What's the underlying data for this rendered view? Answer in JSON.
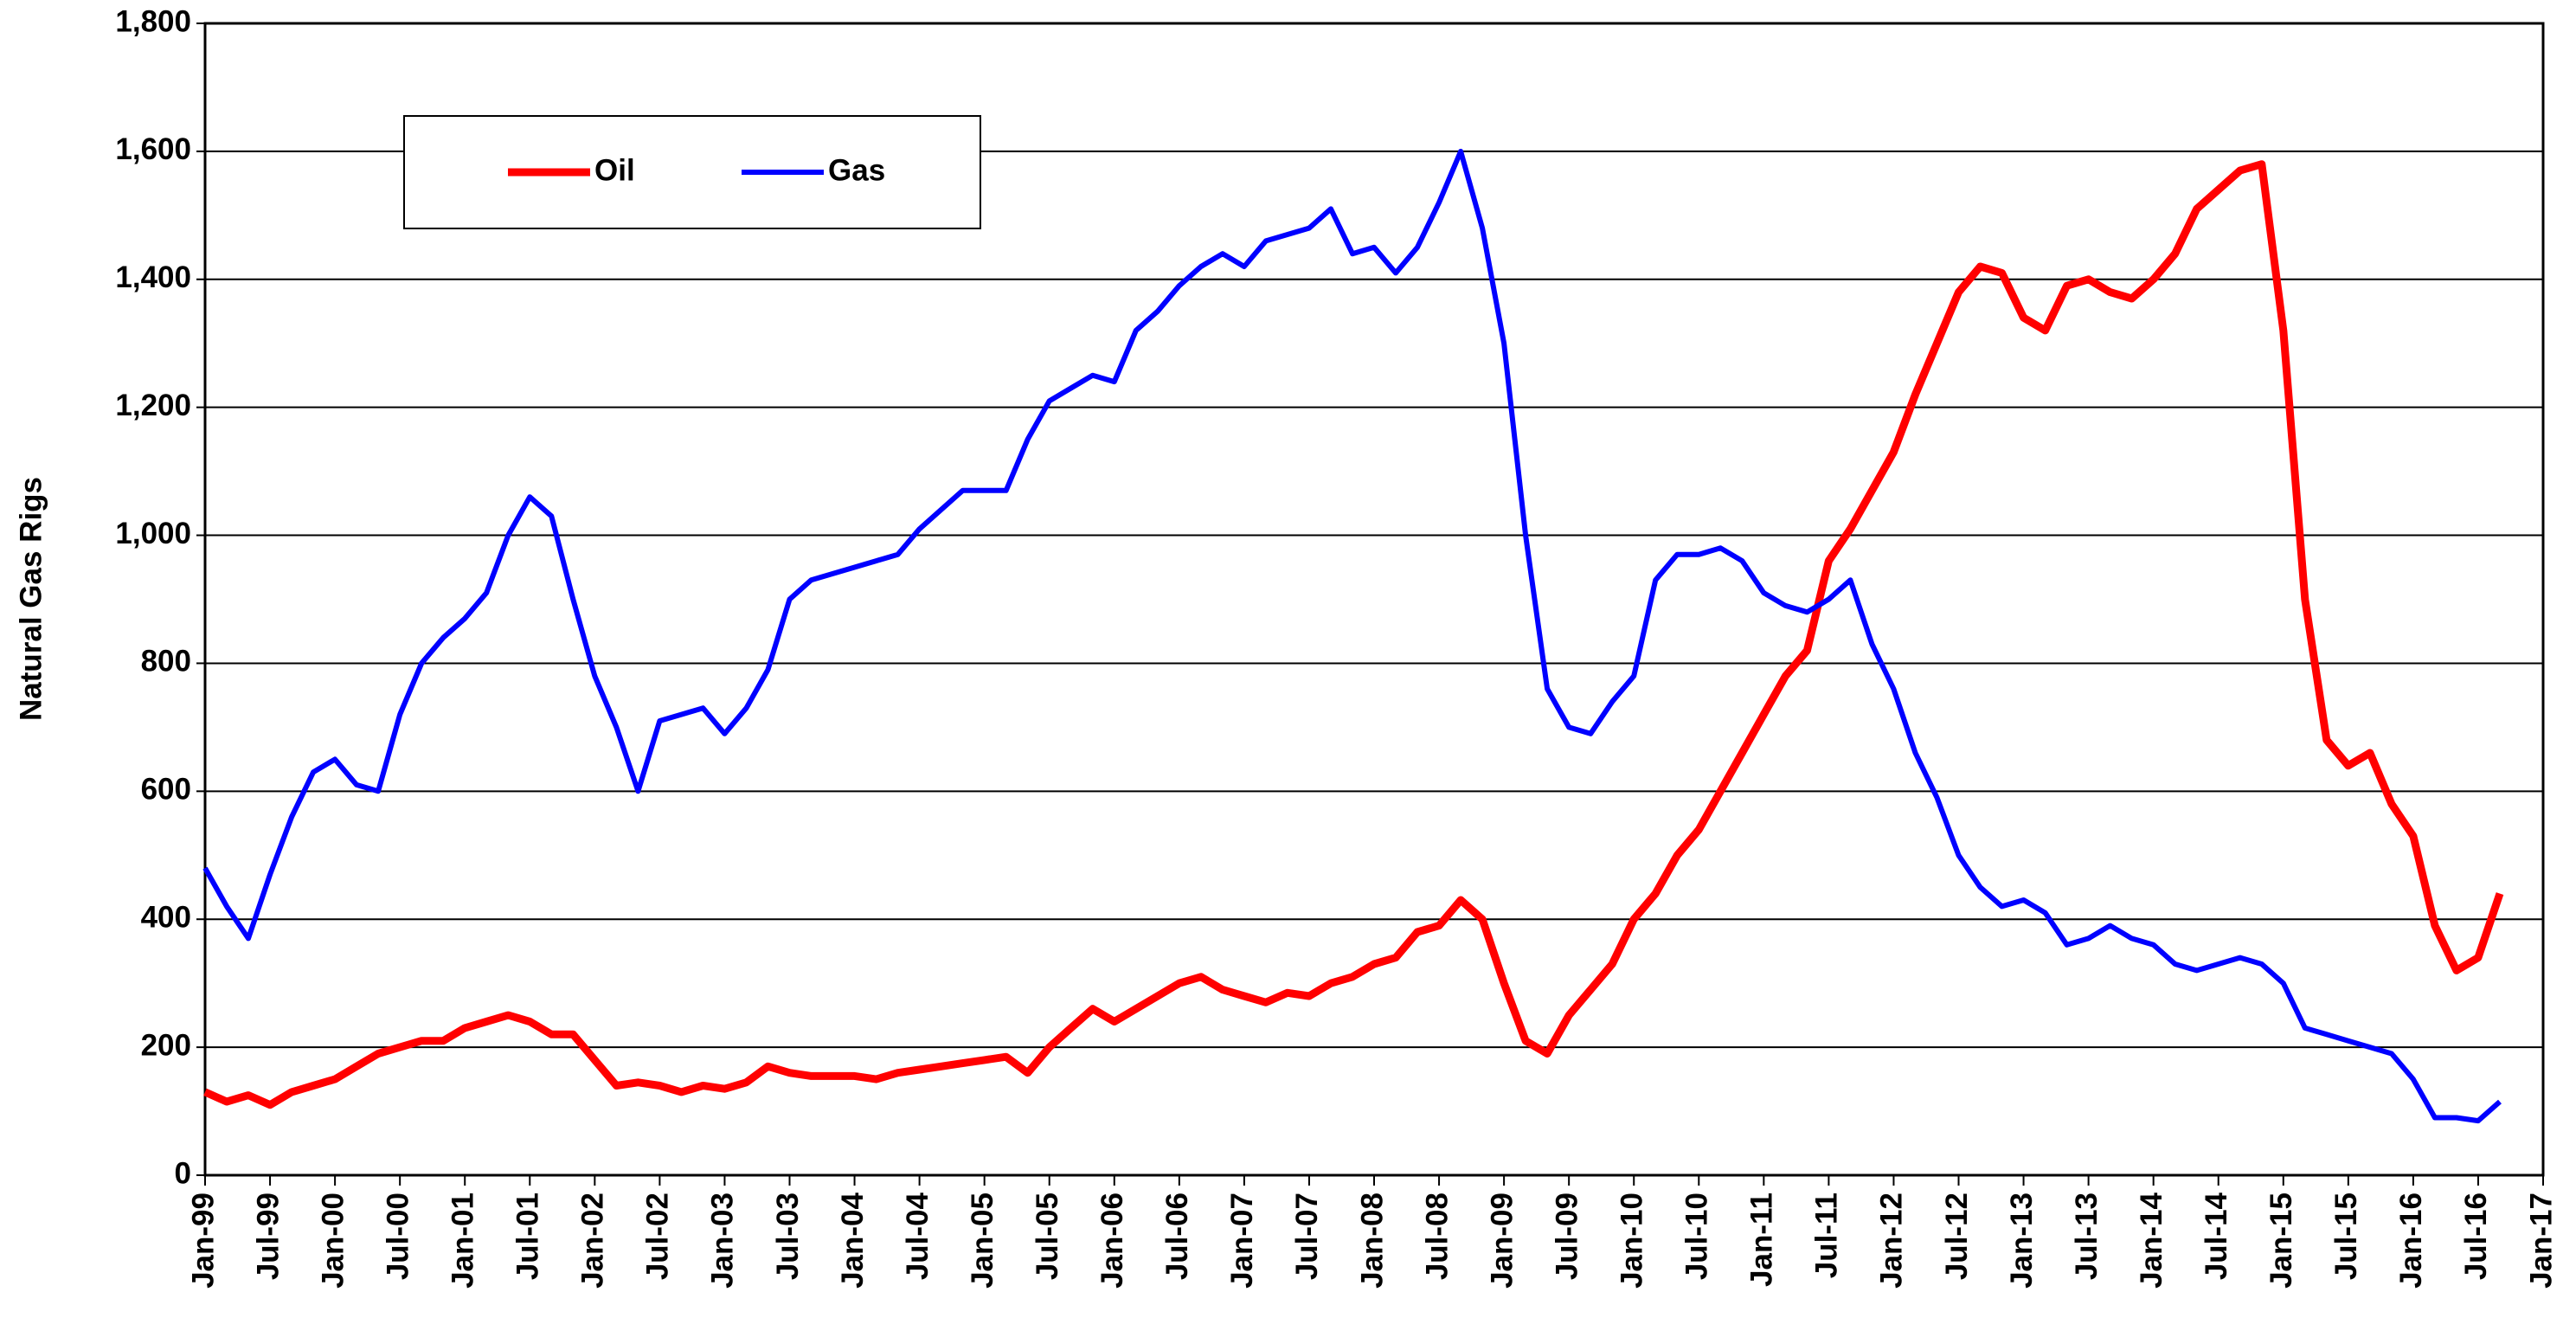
{
  "chart_data": {
    "type": "line",
    "y_label": "Natural Gas Rigs",
    "x": [
      "1999-01",
      "1999-03",
      "1999-05",
      "1999-07",
      "1999-09",
      "1999-11",
      "2000-01",
      "2000-03",
      "2000-05",
      "2000-07",
      "2000-09",
      "2000-11",
      "2001-01",
      "2001-03",
      "2001-05",
      "2001-07",
      "2001-09",
      "2001-11",
      "2002-01",
      "2002-03",
      "2002-05",
      "2002-07",
      "2002-09",
      "2002-11",
      "2003-01",
      "2003-03",
      "2003-05",
      "2003-07",
      "2003-09",
      "2003-11",
      "2004-01",
      "2004-03",
      "2004-05",
      "2004-07",
      "2004-09",
      "2004-11",
      "2005-01",
      "2005-03",
      "2005-05",
      "2005-07",
      "2005-09",
      "2005-11",
      "2006-01",
      "2006-03",
      "2006-05",
      "2006-07",
      "2006-09",
      "2006-11",
      "2007-01",
      "2007-03",
      "2007-05",
      "2007-07",
      "2007-09",
      "2007-11",
      "2008-01",
      "2008-03",
      "2008-05",
      "2008-07",
      "2008-09",
      "2008-11",
      "2009-01",
      "2009-03",
      "2009-05",
      "2009-07",
      "2009-09",
      "2009-11",
      "2010-01",
      "2010-03",
      "2010-05",
      "2010-07",
      "2010-09",
      "2010-11",
      "2011-01",
      "2011-03",
      "2011-05",
      "2011-07",
      "2011-09",
      "2011-11",
      "2012-01",
      "2012-03",
      "2012-05",
      "2012-07",
      "2012-09",
      "2012-11",
      "2013-01",
      "2013-03",
      "2013-05",
      "2013-07",
      "2013-09",
      "2013-11",
      "2014-01",
      "2014-03",
      "2014-05",
      "2014-07",
      "2014-09",
      "2014-11",
      "2015-01",
      "2015-03",
      "2015-05",
      "2015-07",
      "2015-09",
      "2015-11",
      "2016-01",
      "2016-03",
      "2016-05",
      "2016-07",
      "2016-09"
    ],
    "series": [
      {
        "name": "Oil",
        "color": "#ff0000",
        "values": [
          130,
          115,
          125,
          110,
          130,
          140,
          150,
          170,
          190,
          200,
          210,
          210,
          230,
          240,
          250,
          240,
          220,
          220,
          180,
          140,
          145,
          140,
          130,
          140,
          135,
          145,
          170,
          160,
          155,
          155,
          155,
          150,
          160,
          165,
          170,
          175,
          180,
          185,
          160,
          200,
          230,
          260,
          240,
          260,
          280,
          300,
          310,
          290,
          280,
          270,
          285,
          280,
          300,
          310,
          330,
          340,
          380,
          390,
          430,
          400,
          300,
          210,
          190,
          250,
          290,
          330,
          400,
          440,
          500,
          540,
          600,
          660,
          720,
          780,
          820,
          960,
          1010,
          1070,
          1130,
          1220,
          1300,
          1380,
          1420,
          1410,
          1340,
          1320,
          1390,
          1400,
          1380,
          1370,
          1400,
          1440,
          1510,
          1540,
          1570,
          1580,
          1320,
          900,
          680,
          640,
          660,
          580,
          530,
          390,
          320,
          340,
          440
        ]
      },
      {
        "name": "Gas",
        "color": "#0000ff",
        "values": [
          480,
          420,
          370,
          470,
          560,
          630,
          650,
          610,
          600,
          720,
          800,
          840,
          870,
          910,
          1000,
          1060,
          1030,
          900,
          780,
          700,
          600,
          710,
          720,
          730,
          690,
          730,
          790,
          900,
          930,
          940,
          950,
          960,
          970,
          1010,
          1040,
          1070,
          1070,
          1070,
          1150,
          1210,
          1230,
          1250,
          1240,
          1320,
          1350,
          1390,
          1420,
          1440,
          1420,
          1460,
          1470,
          1480,
          1510,
          1440,
          1450,
          1410,
          1450,
          1520,
          1600,
          1480,
          1300,
          1000,
          760,
          700,
          690,
          740,
          780,
          930,
          970,
          970,
          980,
          960,
          910,
          890,
          880,
          900,
          930,
          830,
          760,
          660,
          590,
          500,
          450,
          420,
          430,
          410,
          360,
          370,
          390,
          370,
          360,
          330,
          320,
          330,
          340,
          330,
          300,
          230,
          220,
          210,
          200,
          190,
          150,
          90,
          90,
          85,
          115
        ]
      }
    ],
    "xlim": [
      "1999-01",
      "2017-01"
    ],
    "xticks": [
      {
        "value": "1999-01",
        "label": "Jan-99"
      },
      {
        "value": "1999-07",
        "label": "Jul-99"
      },
      {
        "value": "2000-01",
        "label": "Jan-00"
      },
      {
        "value": "2000-07",
        "label": "Jul-00"
      },
      {
        "value": "2001-01",
        "label": "Jan-01"
      },
      {
        "value": "2001-07",
        "label": "Jul-01"
      },
      {
        "value": "2002-01",
        "label": "Jan-02"
      },
      {
        "value": "2002-07",
        "label": "Jul-02"
      },
      {
        "value": "2003-01",
        "label": "Jan-03"
      },
      {
        "value": "2003-07",
        "label": "Jul-03"
      },
      {
        "value": "2004-01",
        "label": "Jan-04"
      },
      {
        "value": "2004-07",
        "label": "Jul-04"
      },
      {
        "value": "2005-01",
        "label": "Jan-05"
      },
      {
        "value": "2005-07",
        "label": "Jul-05"
      },
      {
        "value": "2006-01",
        "label": "Jan-06"
      },
      {
        "value": "2006-07",
        "label": "Jul-06"
      },
      {
        "value": "2007-01",
        "label": "Jan-07"
      },
      {
        "value": "2007-07",
        "label": "Jul-07"
      },
      {
        "value": "2008-01",
        "label": "Jan-08"
      },
      {
        "value": "2008-07",
        "label": "Jul-08"
      },
      {
        "value": "2009-01",
        "label": "Jan-09"
      },
      {
        "value": "2009-07",
        "label": "Jul-09"
      },
      {
        "value": "2010-01",
        "label": "Jan-10"
      },
      {
        "value": "2010-07",
        "label": "Jul-10"
      },
      {
        "value": "2011-01",
        "label": "Jan-11"
      },
      {
        "value": "2011-07",
        "label": "Jul-11"
      },
      {
        "value": "2012-01",
        "label": "Jan-12"
      },
      {
        "value": "2012-07",
        "label": "Jul-12"
      },
      {
        "value": "2013-01",
        "label": "Jan-13"
      },
      {
        "value": "2013-07",
        "label": "Jul-13"
      },
      {
        "value": "2014-01",
        "label": "Jan-14"
      },
      {
        "value": "2014-07",
        "label": "Jul-14"
      },
      {
        "value": "2015-01",
        "label": "Jan-15"
      },
      {
        "value": "2015-07",
        "label": "Jul-15"
      },
      {
        "value": "2016-01",
        "label": "Jan-16"
      },
      {
        "value": "2016-07",
        "label": "Jul-16"
      },
      {
        "value": "2017-01",
        "label": "Jan-17"
      }
    ],
    "ylim": [
      0,
      1800
    ],
    "yticks": [
      0,
      {
        "value": 200,
        "label": "200"
      },
      {
        "value": 400,
        "label": "400"
      },
      {
        "value": 600,
        "label": "600"
      },
      {
        "value": 800,
        "label": "800"
      },
      {
        "value": 1000,
        "label": "1,000"
      },
      {
        "value": 1200,
        "label": "1,200"
      },
      {
        "value": 1400,
        "label": "1,400"
      },
      {
        "value": 1600,
        "label": "1,600"
      },
      {
        "value": 1800,
        "label": "1,800"
      }
    ],
    "grid": true,
    "legend": "top-left"
  }
}
